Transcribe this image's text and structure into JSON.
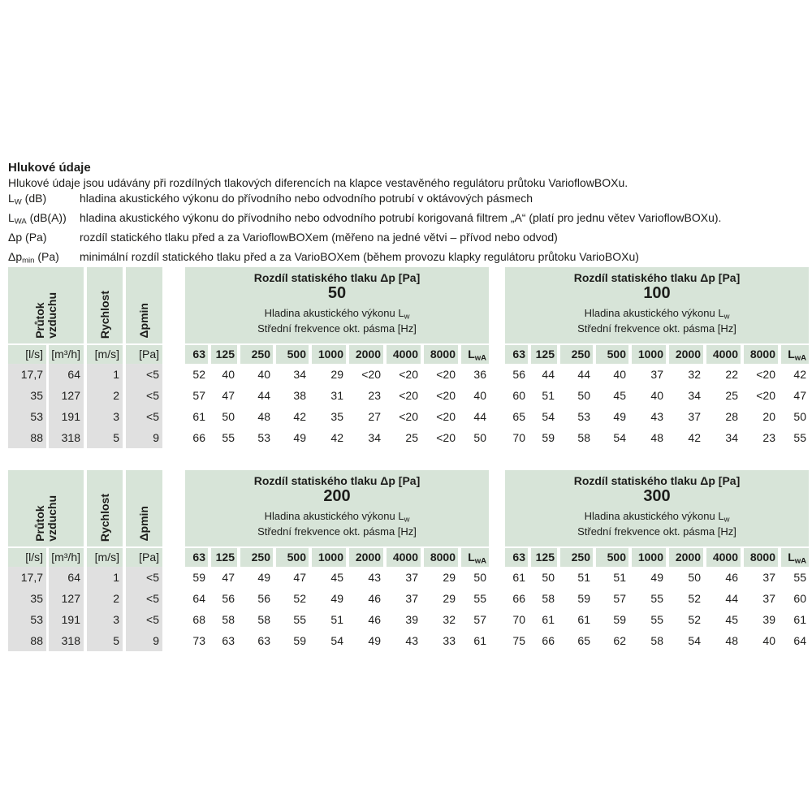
{
  "page": {
    "heading": "Hlukové údaje",
    "intro": "Hlukové údaje jsou udávány při rozdílných tlakových diferencích na klapce vestavěného regulátoru průtoku VarioflowBOXu.",
    "definitions": [
      {
        "sym": "L",
        "sub": "W",
        "rest": " (dB)",
        "desc": "hladina akustického výkonu do přívodního nebo odvodního potrubí v oktávových pásmech"
      },
      {
        "sym": "L",
        "sub": "WA",
        "rest": " (dB(A))",
        "desc": "hladina akustického výkonu do přívodního nebo odvodního potrubí korigovaná filtrem „A“ (platí pro jednu větev VarioflowBOXu)."
      },
      {
        "sym": "Δp",
        "sub": "",
        "rest": " (Pa)",
        "desc": "rozdíl statického tlaku před a za VarioflowBOXem (měřeno na jedné větvi – přívod nebo odvod)"
      },
      {
        "sym": "Δp",
        "sub": "min",
        "rest": " (Pa)",
        "desc": "minimální rozdíl statického tlaku před a za VarioBOXem (během provozu klapky regulátoru průtoku VarioBOXu)"
      }
    ]
  },
  "flow_table": {
    "group_label": "Průtok\nvzduchu",
    "col2_label": "Rychlost",
    "col3_label": "Δpmin",
    "units": [
      "[l/s]",
      "[m³/h]",
      "[m/s]",
      "[Pa]"
    ],
    "rows": [
      [
        "17,7",
        "64",
        "1",
        "<5"
      ],
      [
        "35",
        "127",
        "2",
        "<5"
      ],
      [
        "53",
        "191",
        "3",
        "<5"
      ],
      [
        "88",
        "318",
        "5",
        "9"
      ]
    ]
  },
  "common": {
    "title": "Rozdíl statiského tlaku Δp [Pa]",
    "subtitle_main": "Hladina akustického výkonu L",
    "subtitle_sub": "w",
    "subtitle2": "Střední frekvence okt. pásma [Hz]",
    "freqs": [
      "63",
      "125",
      "250",
      "500",
      "1000",
      "2000",
      "4000",
      "8000"
    ],
    "lwa_main": "L",
    "lwa_sub": "wA"
  },
  "pressure_tables": [
    {
      "pressure": "50",
      "rows": [
        [
          "52",
          "40",
          "40",
          "34",
          "29",
          "<20",
          "<20",
          "<20",
          "36"
        ],
        [
          "57",
          "47",
          "44",
          "38",
          "31",
          "23",
          "<20",
          "<20",
          "40"
        ],
        [
          "61",
          "50",
          "48",
          "42",
          "35",
          "27",
          "<20",
          "<20",
          "44"
        ],
        [
          "66",
          "55",
          "53",
          "49",
          "42",
          "34",
          "25",
          "<20",
          "50"
        ]
      ]
    },
    {
      "pressure": "100",
      "rows": [
        [
          "56",
          "44",
          "44",
          "40",
          "37",
          "32",
          "22",
          "<20",
          "42"
        ],
        [
          "60",
          "51",
          "50",
          "45",
          "40",
          "34",
          "25",
          "<20",
          "47"
        ],
        [
          "65",
          "54",
          "53",
          "49",
          "43",
          "37",
          "28",
          "20",
          "50"
        ],
        [
          "70",
          "59",
          "58",
          "54",
          "48",
          "42",
          "34",
          "23",
          "55"
        ]
      ]
    },
    {
      "pressure": "200",
      "rows": [
        [
          "59",
          "47",
          "49",
          "47",
          "45",
          "43",
          "37",
          "29",
          "50"
        ],
        [
          "64",
          "56",
          "56",
          "52",
          "49",
          "46",
          "37",
          "29",
          "55"
        ],
        [
          "68",
          "58",
          "58",
          "55",
          "51",
          "46",
          "39",
          "32",
          "57"
        ],
        [
          "73",
          "63",
          "63",
          "59",
          "54",
          "49",
          "43",
          "33",
          "61"
        ]
      ]
    },
    {
      "pressure": "300",
      "rows": [
        [
          "61",
          "50",
          "51",
          "51",
          "49",
          "50",
          "46",
          "37",
          "55"
        ],
        [
          "66",
          "58",
          "59",
          "57",
          "55",
          "52",
          "44",
          "37",
          "60"
        ],
        [
          "70",
          "61",
          "61",
          "59",
          "55",
          "52",
          "45",
          "39",
          "61"
        ],
        [
          "75",
          "66",
          "65",
          "62",
          "58",
          "54",
          "48",
          "40",
          "64"
        ]
      ]
    }
  ],
  "colors": {
    "header_green": "#d7e4d8",
    "body_gray": "#e0e0e0",
    "text": "#1d1d1b"
  }
}
